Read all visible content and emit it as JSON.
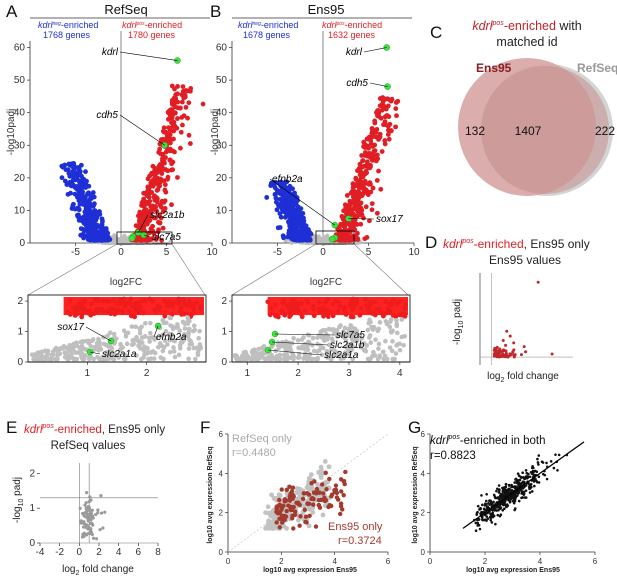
{
  "panels": {
    "A": {
      "letter": "A",
      "title": "RefSeq",
      "neg_line1": "kdrl",
      "neg_sup": "neg",
      "neg_line1b": "-enriched",
      "neg_line2": "1768 genes",
      "pos_line1": "kdrl",
      "pos_sup": "pos",
      "pos_line1b": "-enriched",
      "pos_line2": "1780 genes",
      "xlabel": "log2FC",
      "ylabel": "-log10padj",
      "labels": [
        "kdrl",
        "cdh5",
        "slc2a1b",
        "slc7a5"
      ],
      "inset_labels": [
        "sox17",
        "slc2a1a",
        "efnb2a"
      ]
    },
    "B": {
      "letter": "B",
      "title": "Ens95",
      "neg_line1": "kdrl",
      "neg_sup": "neg",
      "neg_line1b": "-enriched",
      "neg_line2": "1678 genes",
      "pos_line1": "kdrl",
      "pos_sup": "pos",
      "pos_line1b": "-enriched",
      "pos_line2": "1632 genes",
      "xlabel": "log2FC",
      "ylabel": "-log10padj",
      "labels": [
        "kdrl",
        "cdh5",
        "efnb2a",
        "sox17"
      ],
      "inset_labels": [
        "slc7a5",
        "slc2a1b",
        "slc2a1a"
      ]
    },
    "C": {
      "letter": "C",
      "title_gene": "kdrl",
      "title_sup": "pos",
      "title_rest": "-enriched with",
      "title_line2": "matched id",
      "left_label": "Ens95",
      "right_label": "RefSeq",
      "left_only": "132",
      "both": "1407",
      "right_only": "222"
    },
    "D": {
      "letter": "D",
      "title_gene": "kdrl",
      "title_sup": "pos",
      "title_rest": "-enriched, Ens95 only",
      "subtitle": "Ens95 values",
      "ylabel_pre": "-log",
      "ylabel_sub": "10",
      "ylabel_post": " padj",
      "xlabel_pre": "log",
      "xlabel_sub": "2",
      "xlabel_post": " fold change"
    },
    "E": {
      "letter": "E",
      "title_gene": "kdrl",
      "title_sup": "pos",
      "title_rest": "-enriched, Ens95 only",
      "subtitle": "RefSeq values",
      "ylabel_pre": "-log",
      "ylabel_sub": "10",
      "ylabel_post": " padj",
      "xlabel_pre": "log",
      "xlabel_sub": "2",
      "xlabel_post": " fold change"
    },
    "F": {
      "letter": "F",
      "legend_grey": "RefSeq only",
      "r_grey": "r=0.4480",
      "legend_red": "Ens95 only",
      "r_red": "r=0.3724",
      "xlabel": "log10 avg expression Ens95",
      "ylabel": "log10 avg expression RefSeq"
    },
    "G": {
      "letter": "G",
      "title_gene": "kdrl",
      "title_sup": "pos",
      "title_rest": "-enriched in both",
      "r": "r=0.8823",
      "xlabel": "log10 avg expression Ens95",
      "ylabel": "log10 avg expression RefSeq"
    }
  },
  "chart_data": [
    {
      "id": "A",
      "type": "scatter",
      "title": "RefSeq",
      "xlabel": "log2FC",
      "ylabel": "-log10padj",
      "xlim": [
        -10,
        10
      ],
      "ylim": [
        0,
        62
      ],
      "xticks": [
        "-5",
        "0",
        "5",
        "10"
      ],
      "yticks": [
        "0",
        "10",
        "20",
        "30",
        "40",
        "50",
        "60"
      ],
      "series": [
        {
          "name": "kdrl neg-enriched",
          "color": "#1f2fd6",
          "n": 1768
        },
        {
          "name": "kdrl pos-enriched",
          "color": "#e01e24",
          "n": 1780
        }
      ],
      "highlight": [
        {
          "gene": "kdrl",
          "x": 6.2,
          "y": 56
        },
        {
          "gene": "cdh5",
          "x": 4.8,
          "y": 30
        },
        {
          "gene": "slc2a1b",
          "x": 1.9,
          "y": 3.2
        },
        {
          "gene": "slc7a5",
          "x": 2.5,
          "y": 2.5
        },
        {
          "gene": "efnb2a",
          "x": 1.3,
          "y": 2.0
        },
        {
          "gene": "sox17",
          "x": 1.2,
          "y": 1.4
        }
      ]
    },
    {
      "id": "A-inset",
      "type": "scatter",
      "xlim": [
        0,
        3
      ],
      "ylim": [
        0,
        2.2
      ],
      "xticks": [
        "1",
        "2"
      ],
      "yticks": [
        "0",
        "1",
        "2"
      ]
    },
    {
      "id": "B",
      "type": "scatter",
      "title": "Ens95",
      "xlabel": "log2FC",
      "ylabel": "-log10padj",
      "xlim": [
        -10,
        10
      ],
      "ylim": [
        0,
        62
      ],
      "xticks": [
        "-5",
        "0",
        "5",
        "10"
      ],
      "yticks": [
        "0",
        "10",
        "20",
        "30",
        "40",
        "50",
        "60"
      ],
      "series": [
        {
          "name": "kdrl neg-enriched",
          "color": "#1f2fd6",
          "n": 1678
        },
        {
          "name": "kdrl pos-enriched",
          "color": "#e01e24",
          "n": 1632
        }
      ],
      "highlight": [
        {
          "gene": "kdrl",
          "x": 7.0,
          "y": 60
        },
        {
          "gene": "cdh5",
          "x": 7.1,
          "y": 48
        },
        {
          "gene": "efnb2a",
          "x": 1.3,
          "y": 5.5
        },
        {
          "gene": "sox17",
          "x": 2.8,
          "y": 7.5
        },
        {
          "gene": "slc7a5",
          "x": 1.3,
          "y": 1.6
        },
        {
          "gene": "slc2a1b",
          "x": 1.0,
          "y": 1.2
        }
      ]
    },
    {
      "id": "B-inset",
      "type": "scatter",
      "xlim": [
        0.7,
        4.2
      ],
      "ylim": [
        0,
        2.2
      ],
      "xticks": [
        "1",
        "2",
        "3",
        "4"
      ],
      "yticks": [
        "0",
        "1",
        "2"
      ]
    },
    {
      "id": "C",
      "type": "venn",
      "sets": [
        {
          "name": "Ens95",
          "only": 132
        },
        {
          "name": "RefSeq",
          "only": 222
        }
      ],
      "intersection": 1407
    },
    {
      "id": "D",
      "type": "scatter",
      "xlabel": "log2 fold change",
      "ylabel": "-log10 padj",
      "xlim": [
        0,
        8
      ],
      "ylim": [
        0,
        15
      ],
      "points": [
        [
          5,
          13.5
        ],
        [
          2.3,
          5.5
        ],
        [
          2.6,
          4.7
        ],
        [
          2.0,
          4.0
        ],
        [
          2.9,
          3.6
        ],
        [
          3.8,
          3.0
        ],
        [
          6.2,
          1.8
        ],
        [
          2.2,
          3.2
        ],
        [
          1.7,
          2.6
        ]
      ]
    },
    {
      "id": "E",
      "type": "scatter",
      "xlabel": "log2 fold change",
      "ylabel": "-log10 padj",
      "xlim": [
        -4,
        8
      ],
      "ylim": [
        0,
        2.3
      ],
      "xticks": [
        "-4",
        "-2",
        "0",
        "2",
        "4",
        "6",
        "8"
      ],
      "yticks": [
        "0",
        "1",
        "2"
      ]
    },
    {
      "id": "F",
      "type": "scatter",
      "xlabel": "log10 avg expression Ens95",
      "ylabel": "log10 avg expression RefSeq",
      "xlim": [
        0,
        6
      ],
      "ylim": [
        0,
        6
      ],
      "xticks": [
        "0",
        "2",
        "4",
        "6"
      ],
      "yticks": [
        "0",
        "2",
        "4",
        "6"
      ],
      "series": [
        {
          "name": "RefSeq only",
          "color": "#b5b5b5",
          "r": 0.448
        },
        {
          "name": "Ens95 only",
          "color": "#a33a2e",
          "r": 0.3724
        }
      ]
    },
    {
      "id": "G",
      "type": "scatter",
      "xlabel": "log10 avg expression Ens95",
      "ylabel": "log10 avg expression RefSeq",
      "xlim": [
        0,
        6
      ],
      "ylim": [
        0,
        6
      ],
      "xticks": [
        "0",
        "2",
        "4",
        "6"
      ],
      "yticks": [
        "0",
        "2",
        "4",
        "6"
      ],
      "r": 0.8823
    }
  ]
}
